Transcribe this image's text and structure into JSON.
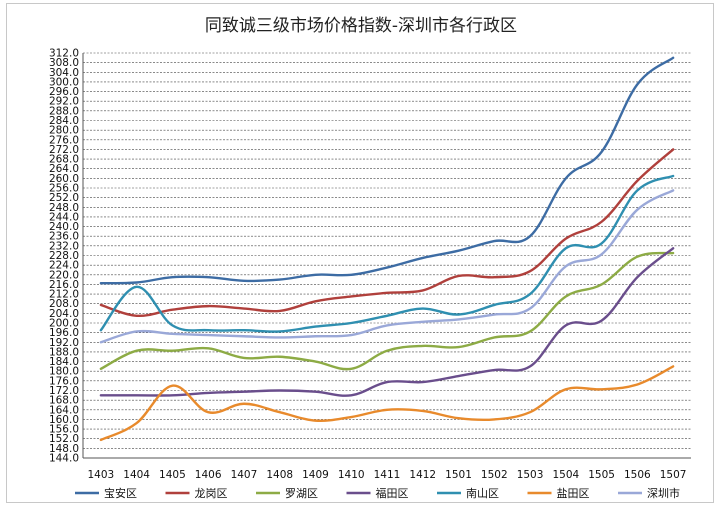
{
  "chart_data": {
    "type": "line",
    "title": "同致诚三级市场价格指数-深圳市各行政区",
    "xlabel": "",
    "ylabel": "",
    "categories": [
      "1403",
      "1404",
      "1405",
      "1406",
      "1407",
      "1408",
      "1409",
      "1410",
      "1411",
      "1412",
      "1501",
      "1502",
      "1503",
      "1504",
      "1505",
      "1506",
      "1507"
    ],
    "ylim": [
      144,
      312
    ],
    "ytick_step": 4,
    "ytick_labels": [
      "144.0",
      "148.0",
      "152.0",
      "156.0",
      "160.0",
      "164.0",
      "168.0",
      "172.0",
      "176.0",
      "180.0",
      "184.0",
      "188.0",
      "192.0",
      "196.0",
      "200.0",
      "204.0",
      "208.0",
      "212.0",
      "216.0",
      "220.0",
      "224.0",
      "228.0",
      "232.0",
      "236.0",
      "240.0",
      "244.0",
      "248.0",
      "252.0",
      "256.0",
      "260.0",
      "264.0",
      "268.0",
      "272.0",
      "276.0",
      "280.0",
      "284.0",
      "288.0",
      "292.0",
      "296.0",
      "300.0",
      "304.0",
      "308.0",
      "312.0"
    ],
    "grid": true,
    "legend_position": "bottom",
    "series": [
      {
        "name": "宝安区",
        "color": "#3d6ca4",
        "values": [
          216.5,
          216.8,
          219.0,
          219.0,
          217.5,
          218.0,
          220.0,
          220.0,
          223.0,
          227.0,
          230.0,
          234.0,
          236.0,
          260.0,
          271.0,
          299.0,
          310.0
        ]
      },
      {
        "name": "龙岗区",
        "color": "#b0403c",
        "values": [
          207.5,
          203.0,
          205.5,
          207.0,
          206.0,
          205.0,
          209.0,
          211.0,
          212.5,
          213.5,
          219.5,
          219.0,
          221.5,
          235.0,
          242.0,
          259.0,
          272.0
        ]
      },
      {
        "name": "罗湖区",
        "color": "#8dab45",
        "values": [
          181.0,
          188.5,
          188.5,
          189.5,
          185.5,
          186.0,
          184.0,
          181.0,
          188.5,
          190.5,
          190.0,
          194.0,
          196.5,
          211.0,
          216.0,
          227.5,
          229.0
        ]
      },
      {
        "name": "福田区",
        "color": "#6a4e8c",
        "values": [
          170.0,
          170.0,
          170.0,
          171.0,
          171.5,
          172.0,
          171.5,
          170.0,
          175.5,
          175.5,
          178.0,
          180.5,
          182.0,
          199.0,
          201.0,
          219.0,
          231.0
        ]
      },
      {
        "name": "南山区",
        "color": "#2f8fb0",
        "values": [
          197.0,
          215.0,
          199.0,
          197.0,
          197.0,
          196.5,
          198.5,
          200.0,
          203.0,
          206.0,
          203.5,
          207.5,
          212.0,
          231.0,
          233.0,
          255.0,
          261.0
        ]
      },
      {
        "name": "盐田区",
        "color": "#e88a2c",
        "values": [
          151.5,
          158.5,
          174.0,
          163.0,
          166.5,
          163.0,
          159.5,
          161.0,
          164.0,
          163.5,
          160.5,
          160.0,
          163.0,
          172.5,
          172.5,
          174.5,
          182.0
        ]
      },
      {
        "name": "深圳市",
        "color": "#9aa8d8",
        "values": [
          192.0,
          196.5,
          195.5,
          195.0,
          194.5,
          194.0,
          194.5,
          195.0,
          199.0,
          200.5,
          201.5,
          203.5,
          206.0,
          223.5,
          228.5,
          247.0,
          255.0
        ]
      }
    ]
  }
}
